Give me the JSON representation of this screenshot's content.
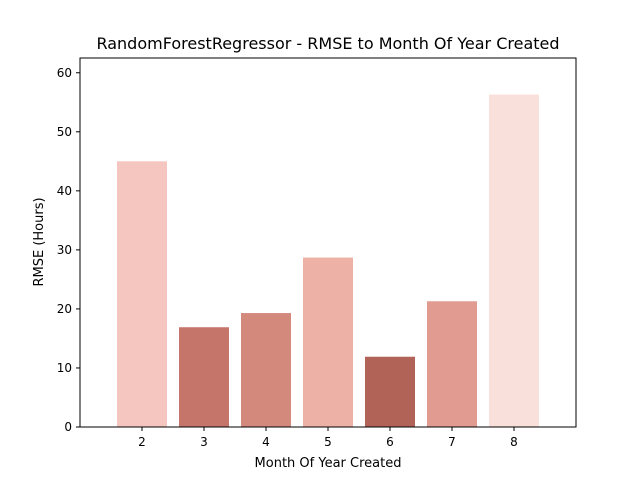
{
  "chart_data": {
    "type": "bar",
    "title": "RandomForestRegressor - RMSE to Month Of Year Created",
    "xlabel": "Month Of Year Created",
    "ylabel": "RMSE (Hours)",
    "categories": [
      "2",
      "3",
      "4",
      "5",
      "6",
      "7",
      "8"
    ],
    "values": [
      45.0,
      16.9,
      19.3,
      28.7,
      11.9,
      21.3,
      56.3
    ],
    "bar_colors": [
      "#f5c6c0",
      "#c6756a",
      "#d4897d",
      "#eeb1a6",
      "#b26358",
      "#e19b90",
      "#fae0da"
    ],
    "ylim": [
      0,
      62.5
    ],
    "yticks": [
      0,
      10,
      20,
      30,
      40,
      50,
      60
    ],
    "grid": false,
    "legend": "none"
  }
}
